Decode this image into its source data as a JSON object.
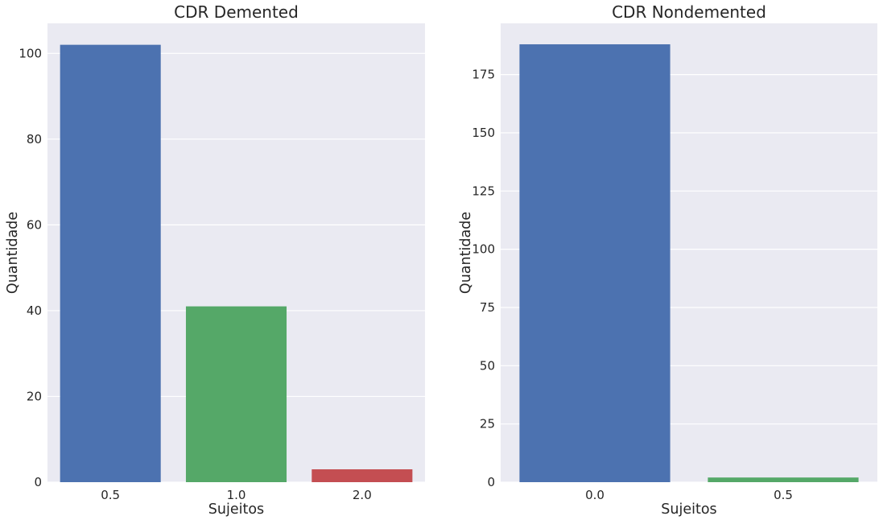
{
  "colors": {
    "figure_bg": "#ffffff",
    "axes_bg": "#EAEAF2",
    "grid": "#ffffff",
    "text": "#262626",
    "palette": [
      "#4C72B0",
      "#55A868",
      "#C44E52"
    ]
  },
  "chart_data": [
    {
      "type": "bar",
      "title": "CDR Demented",
      "xlabel": "Sujeitos",
      "ylabel": "Quantidade",
      "categories": [
        "0.5",
        "1.0",
        "2.0"
      ],
      "values": [
        102,
        41,
        3
      ],
      "ylim": [
        0,
        107
      ],
      "yticks": [
        0,
        20,
        40,
        60,
        80,
        100
      ],
      "grid": true,
      "legend": "none"
    },
    {
      "type": "bar",
      "title": "CDR Nondemented",
      "xlabel": "Sujeitos",
      "ylabel": "Quantidade",
      "categories": [
        "0.0",
        "0.5"
      ],
      "values": [
        188,
        2
      ],
      "ylim": [
        0,
        197
      ],
      "yticks": [
        0,
        25,
        50,
        75,
        100,
        125,
        150,
        175
      ],
      "grid": true,
      "legend": "none"
    }
  ]
}
